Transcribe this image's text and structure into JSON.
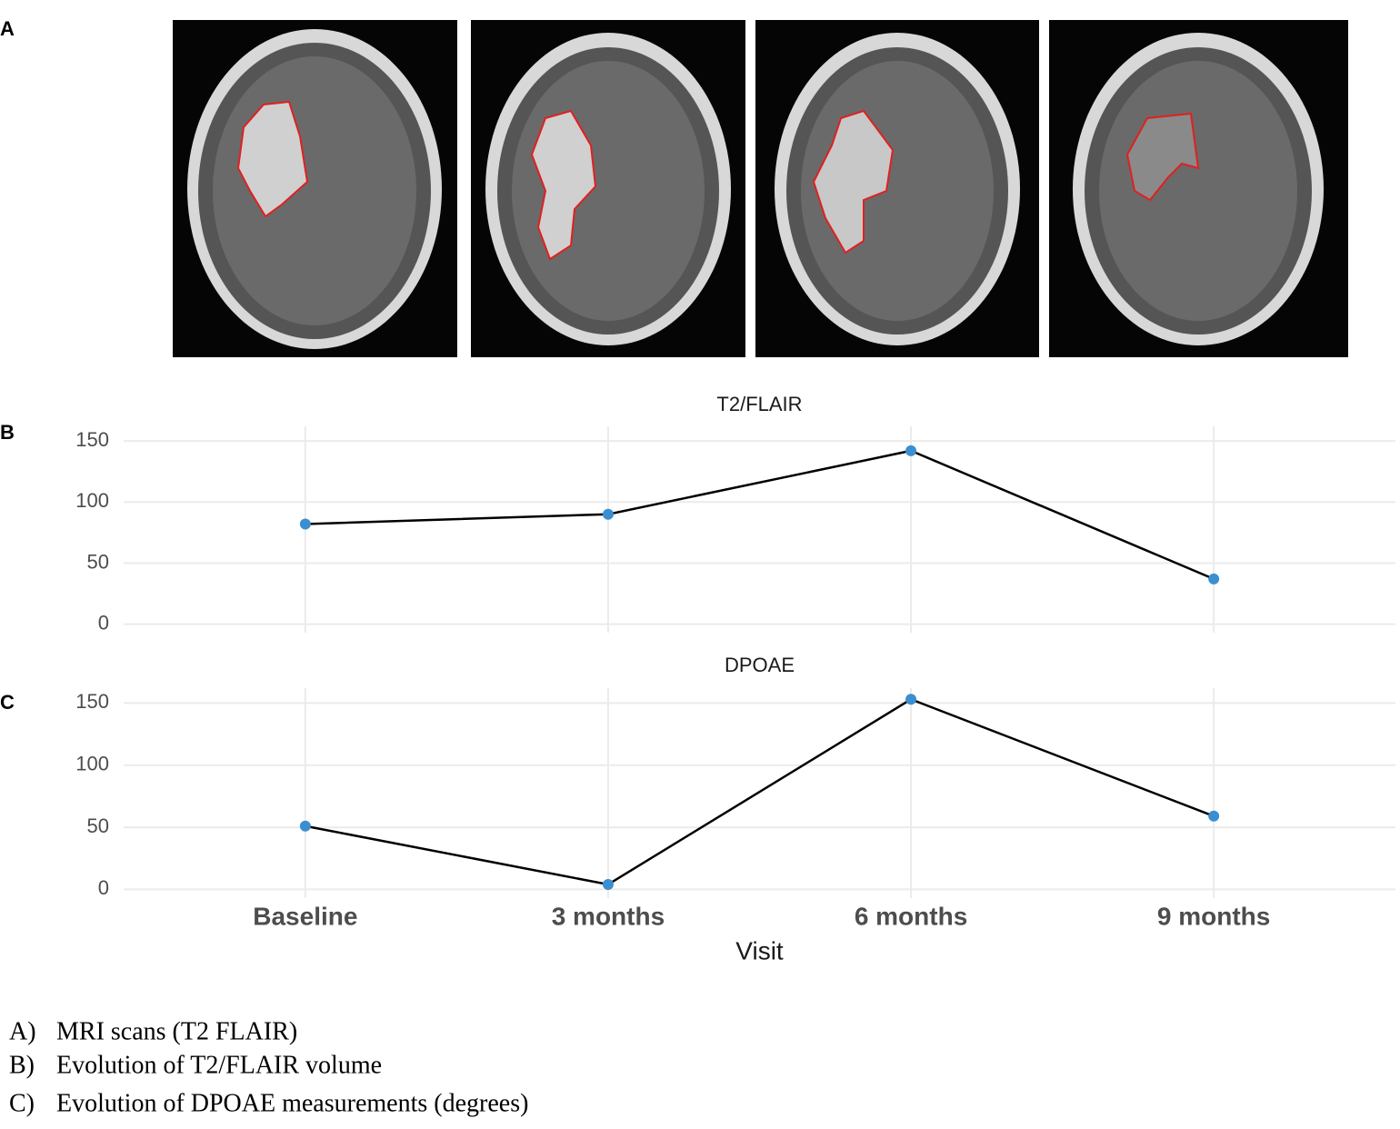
{
  "panel_labels": [
    "A",
    "B",
    "C"
  ],
  "chart_data": [
    {
      "type": "line",
      "title": "T2/FLAIR",
      "values": [
        82,
        90,
        142,
        37
      ],
      "line_color": "#000000",
      "point_color": "#3b8fd0",
      "ylim": [
        -7,
        162
      ],
      "yticks": [
        0,
        50,
        100,
        150
      ],
      "grid": true
    },
    {
      "type": "line",
      "title": "DPOAE",
      "categories": [
        "Baseline",
        "3 months",
        "6 months",
        "9 months"
      ],
      "x_label": "Visit",
      "values": [
        51,
        4,
        153,
        59
      ],
      "line_color": "#000000",
      "point_color": "#3b8fd0",
      "ylim": [
        -7,
        162
      ],
      "yticks": [
        0,
        50,
        100,
        150
      ],
      "grid": true
    }
  ],
  "captions": [
    {
      "marker": "A)",
      "text": "MRI scans (T2 FLAIR)"
    },
    {
      "marker": "B)",
      "text": "Evolution of T2/FLAIR volume"
    },
    {
      "marker": "C)",
      "text": "Evolution of DPOAE measurements (degrees)"
    }
  ]
}
